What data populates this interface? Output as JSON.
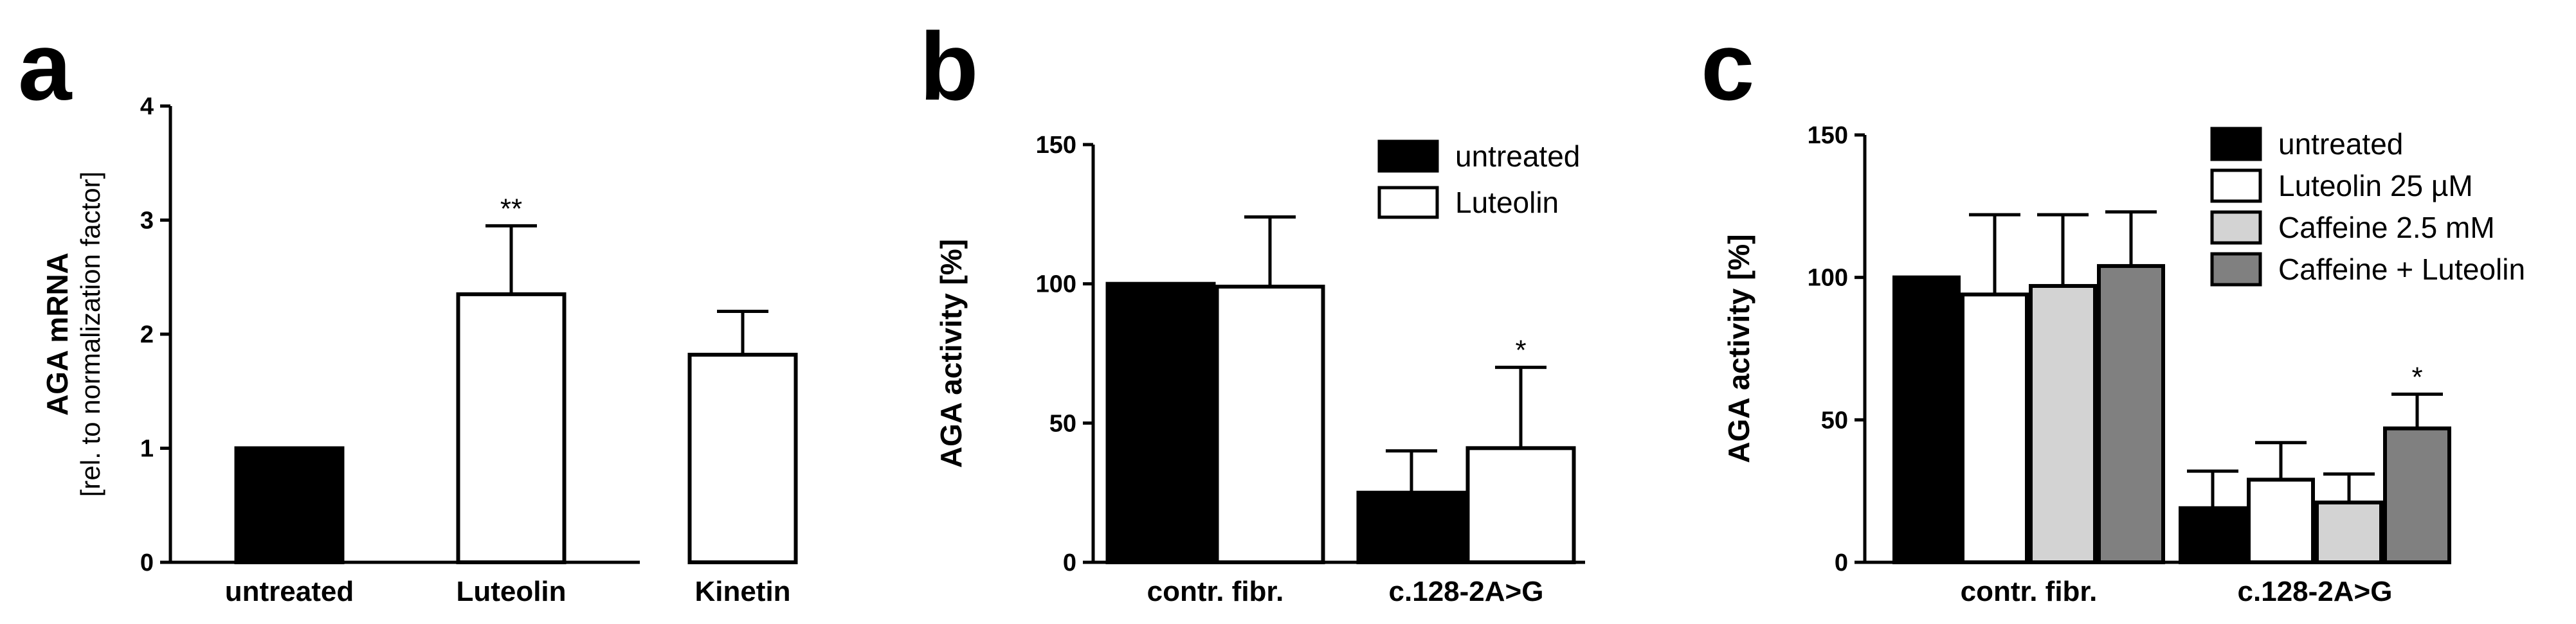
{
  "colors": {
    "untreated": "#000000",
    "luteolin": "#ffffff",
    "caffeine": "#d3d3d3",
    "combo": "#808080",
    "stroke": "#000000"
  },
  "chart_data": [
    {
      "id": "a",
      "panel_letter": "a",
      "type": "bar",
      "ylabel": "AGA mRNA",
      "ylabel_sub": "[rel. to normalization factor]",
      "ylim": [
        0,
        4
      ],
      "yticks": [
        0,
        1,
        2,
        3,
        4
      ],
      "categories": [
        "untreated",
        "Luteolin",
        "Kinetin"
      ],
      "series": [
        {
          "values": [
            1.0,
            2.35,
            1.82
          ],
          "errors": [
            0,
            0.6,
            0.38
          ],
          "colors": [
            "untreated",
            "luteolin",
            "luteolin"
          ],
          "annotations": [
            "",
            "**",
            ""
          ]
        }
      ],
      "legend": []
    },
    {
      "id": "b",
      "panel_letter": "b",
      "type": "bar",
      "ylabel": "AGA activity [%]",
      "ylabel_sub": "",
      "ylim": [
        0,
        150
      ],
      "yticks": [
        0,
        50,
        100,
        150
      ],
      "categories": [
        "contr. fibr.",
        "c.128-2A>G"
      ],
      "series": [
        {
          "name": "untreated",
          "color": "untreated",
          "values": [
            100,
            25
          ],
          "errors": [
            0,
            15
          ],
          "annotations": [
            "",
            ""
          ]
        },
        {
          "name": "Luteolin",
          "color": "luteolin",
          "values": [
            99,
            41
          ],
          "errors": [
            25,
            29
          ],
          "annotations": [
            "",
            "*"
          ]
        }
      ],
      "legend": [
        "untreated",
        "Luteolin"
      ]
    },
    {
      "id": "c",
      "panel_letter": "c",
      "type": "bar",
      "ylabel": "AGA activity [%]",
      "ylabel_sub": "",
      "ylim": [
        0,
        150
      ],
      "yticks": [
        0,
        50,
        100,
        150
      ],
      "categories": [
        "contr. fibr.",
        "c.128-2A>G"
      ],
      "series": [
        {
          "name": "untreated",
          "color": "untreated",
          "values": [
            100,
            19
          ],
          "errors": [
            0,
            13
          ],
          "annotations": [
            "",
            ""
          ]
        },
        {
          "name": "Luteolin 25 µM",
          "color": "luteolin",
          "values": [
            94,
            29
          ],
          "errors": [
            28,
            13
          ],
          "annotations": [
            "",
            ""
          ]
        },
        {
          "name": "Caffeine 2.5 mM",
          "color": "caffeine",
          "values": [
            97,
            21
          ],
          "errors": [
            25,
            10
          ],
          "annotations": [
            "",
            ""
          ]
        },
        {
          "name": "Caffeine + Luteolin",
          "color": "combo",
          "values": [
            104,
            47
          ],
          "errors": [
            19,
            12
          ],
          "annotations": [
            "",
            "*"
          ]
        }
      ],
      "legend": [
        "untreated",
        "Luteolin 25 µM",
        "Caffeine 2.5 mM",
        "Caffeine + Luteolin"
      ]
    }
  ]
}
